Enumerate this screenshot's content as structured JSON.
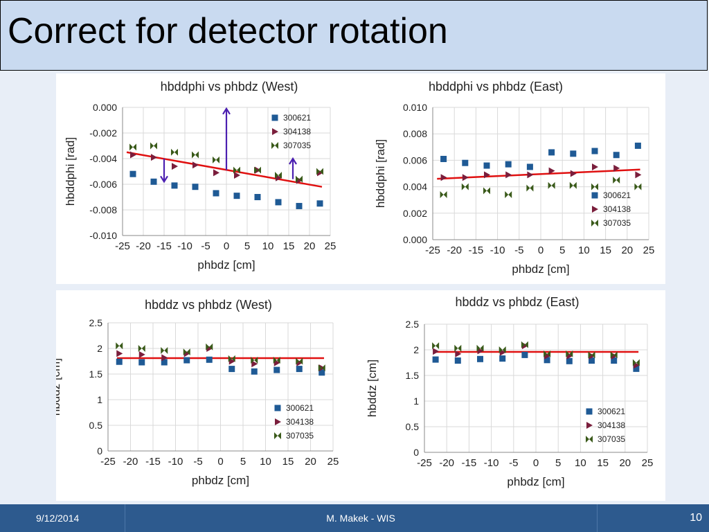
{
  "slide": {
    "title": "Correct for detector rotation",
    "footer": {
      "date": "9/12/2014",
      "author": "M. Makek - WIS",
      "page": "10"
    }
  },
  "colors": {
    "s300621": "#1f5a95",
    "s304138": "#7a1e3c",
    "s307035": "#3a5a1a",
    "fit": "#e01010",
    "arrow": "#4b1fb0"
  },
  "chart_data": [
    {
      "type": "scatter",
      "title": "hbddphi vs phbdz (West)",
      "xlabel": "phbdz [cm]",
      "ylabel": "hbddphi [rad]",
      "xlim": [
        -25,
        25
      ],
      "ylim": [
        -0.01,
        0.0
      ],
      "xticks": [
        "-25",
        "-20",
        "-15",
        "-10",
        "-5",
        "0",
        "5",
        "10",
        "15",
        "20",
        "25"
      ],
      "yticks": [
        "-0.010",
        "-0.008",
        "-0.006",
        "-0.004",
        "-0.002",
        "0.000"
      ],
      "legend": "top-right",
      "x": [
        -22.5,
        -17.5,
        -12.5,
        -7.5,
        -2.5,
        2.5,
        7.5,
        12.5,
        17.5,
        22.5
      ],
      "series": [
        {
          "name": "300621",
          "values": [
            -0.0052,
            -0.0058,
            -0.0061,
            -0.0062,
            -0.0067,
            -0.0069,
            -0.007,
            -0.0074,
            -0.0077,
            -0.0075
          ]
        },
        {
          "name": "304138",
          "values": [
            -0.0037,
            -0.0039,
            -0.0046,
            -0.0045,
            -0.0051,
            -0.0053,
            -0.0049,
            -0.0055,
            -0.0057,
            -0.0051
          ]
        },
        {
          "name": "307035",
          "values": [
            -0.0031,
            -0.003,
            -0.0035,
            -0.0037,
            -0.0041,
            -0.0049,
            -0.0049,
            -0.0053,
            -0.0056,
            -0.005
          ]
        }
      ],
      "fit": {
        "x": [
          -24,
          23
        ],
        "y": [
          -0.0035,
          -0.0062
        ]
      },
      "arrows": [
        [
          0,
          -0.0049,
          0,
          -0.0001
        ],
        [
          -15,
          -0.004,
          -15,
          -0.0058
        ],
        [
          16,
          -0.0056,
          16,
          -0.004
        ]
      ]
    },
    {
      "type": "scatter",
      "title": "hbddphi vs phbdz (East)",
      "xlabel": "phbdz [cm]",
      "ylabel": "hbddphi [rad]",
      "xlim": [
        -25,
        25
      ],
      "ylim": [
        0.0,
        0.01
      ],
      "xticks": [
        "-25",
        "-20",
        "-15",
        "-10",
        "-5",
        "0",
        "5",
        "10",
        "15",
        "20",
        "25"
      ],
      "yticks": [
        "0.000",
        "0.002",
        "0.004",
        "0.006",
        "0.008",
        "0.010"
      ],
      "legend": "bottom-right",
      "x": [
        -22.5,
        -17.5,
        -12.5,
        -7.5,
        -2.5,
        2.5,
        7.5,
        12.5,
        17.5,
        22.5
      ],
      "series": [
        {
          "name": "300621",
          "values": [
            0.0061,
            0.0058,
            0.0056,
            0.0057,
            0.0055,
            0.0066,
            0.0065,
            0.0067,
            0.0064,
            0.0071
          ]
        },
        {
          "name": "304138",
          "values": [
            0.0047,
            0.0047,
            0.0049,
            0.0049,
            0.0049,
            0.0052,
            0.005,
            0.0055,
            0.0054,
            0.0049
          ]
        },
        {
          "name": "307035",
          "values": [
            0.0034,
            0.004,
            0.0037,
            0.0034,
            0.0039,
            0.0041,
            0.0041,
            0.004,
            0.0045,
            0.004
          ]
        }
      ],
      "fit": {
        "x": [
          -24,
          23
        ],
        "y": [
          0.0046,
          0.0053
        ]
      },
      "arrows": []
    },
    {
      "type": "scatter",
      "title": "hbddz vs phbdz (West)",
      "xlabel": "phbdz [cm]",
      "ylabel": "hbddz [cm]",
      "xlim": [
        -25,
        25
      ],
      "ylim": [
        0,
        2.5
      ],
      "xticks": [
        "-25",
        "-20",
        "-15",
        "-10",
        "-5",
        "0",
        "5",
        "10",
        "15",
        "20",
        "25"
      ],
      "yticks": [
        "0",
        "0.5",
        "1",
        "1.5",
        "2",
        "2.5"
      ],
      "legend": "bottom-right",
      "x": [
        -22.5,
        -17.5,
        -12.5,
        -7.5,
        -2.5,
        2.5,
        7.5,
        12.5,
        17.5,
        22.5
      ],
      "series": [
        {
          "name": "300621",
          "values": [
            1.74,
            1.73,
            1.73,
            1.77,
            1.78,
            1.6,
            1.55,
            1.58,
            1.6,
            1.53
          ]
        },
        {
          "name": "304138",
          "values": [
            1.9,
            1.88,
            1.82,
            1.9,
            2.0,
            1.75,
            1.7,
            1.72,
            1.72,
            1.62
          ]
        },
        {
          "name": "307035",
          "values": [
            2.05,
            2.0,
            1.96,
            1.93,
            2.03,
            1.8,
            1.77,
            1.77,
            1.75,
            1.62
          ]
        }
      ],
      "fit": {
        "x": [
          -23,
          23
        ],
        "y": [
          1.81,
          1.81
        ]
      },
      "arrows": []
    },
    {
      "type": "scatter",
      "title": "hbddz vs phbdz (East)",
      "xlabel": "phbdz [cm]",
      "ylabel": "hbddz [cm]",
      "xlim": [
        -25,
        25
      ],
      "ylim": [
        0,
        2.5
      ],
      "xticks": [
        "-25",
        "-20",
        "-15",
        "-10",
        "-5",
        "0",
        "5",
        "10",
        "15",
        "20",
        "25"
      ],
      "yticks": [
        "0",
        "0.5",
        "1",
        "1.5",
        "2",
        "2.5"
      ],
      "legend": "bottom-right",
      "x": [
        -22.5,
        -17.5,
        -12.5,
        -7.5,
        -2.5,
        2.5,
        7.5,
        12.5,
        17.5,
        22.5
      ],
      "series": [
        {
          "name": "300621",
          "values": [
            1.81,
            1.79,
            1.82,
            1.83,
            1.9,
            1.8,
            1.78,
            1.79,
            1.79,
            1.63
          ]
        },
        {
          "name": "304138",
          "values": [
            1.97,
            1.92,
            1.98,
            1.95,
            2.08,
            1.88,
            1.88,
            1.88,
            1.88,
            1.7
          ]
        },
        {
          "name": "307035",
          "values": [
            2.08,
            2.03,
            2.03,
            2.0,
            2.1,
            1.92,
            1.92,
            1.9,
            1.9,
            1.75
          ]
        }
      ],
      "fit": {
        "x": [
          -23,
          23
        ],
        "y": [
          1.96,
          1.96
        ]
      },
      "arrows": []
    }
  ]
}
